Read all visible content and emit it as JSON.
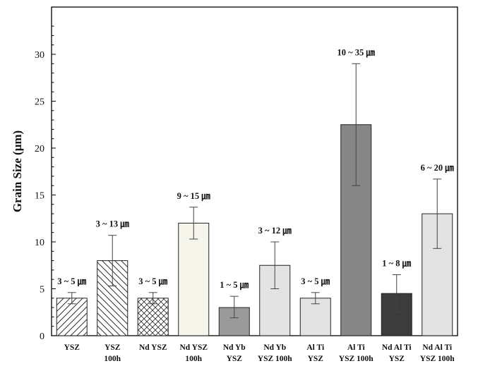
{
  "chart_data": {
    "type": "bar",
    "ylabel": "Grain Size (μm)",
    "ylim": [
      0,
      33
    ],
    "yticks": [
      0,
      5,
      10,
      15,
      20,
      25,
      30
    ],
    "grid": false,
    "categories": [
      [
        "YSZ"
      ],
      [
        "YSZ",
        "100h"
      ],
      [
        "Nd YSZ"
      ],
      [
        "Nd YSZ",
        "100h"
      ],
      [
        "Nd Yb",
        "YSZ"
      ],
      [
        "Nd Yb",
        "YSZ 100h"
      ],
      [
        "Al Ti",
        "YSZ"
      ],
      [
        "Al Ti",
        "YSZ 100h"
      ],
      [
        "Nd Al Ti",
        "YSZ"
      ],
      [
        "Nd Al Ti",
        "YSZ 100h"
      ]
    ],
    "values": [
      4,
      8,
      4,
      12,
      3,
      7.5,
      4,
      22.5,
      4.5,
      13
    ],
    "error_low": [
      3.4,
      5.3,
      3.4,
      10.3,
      1.9,
      5.0,
      3.4,
      16.0,
      2.5,
      9.3
    ],
    "error_high": [
      4.6,
      10.7,
      4.6,
      13.7,
      4.2,
      10.0,
      4.6,
      29.0,
      6.5,
      16.7
    ],
    "data_labels": [
      "3 ~ 5 ㎛",
      "3 ~ 13 ㎛",
      "3 ~ 5 ㎛",
      "9 ~ 15 ㎛",
      "1 ~ 5 ㎛",
      "3 ~ 12 ㎛",
      "3 ~ 5 ㎛",
      "10 ~ 35 ㎛",
      "1 ~ 8 ㎛",
      "6 ~ 20 ㎛"
    ],
    "bar_fills": [
      "hatch-fwd",
      "hatch-back",
      "hatch-cross",
      "#f5f5ec",
      "#9a9a9a",
      "#e3e3e3",
      "#e3e3e3",
      "#868686",
      "#3c3c3c",
      "#e3e3e3"
    ]
  }
}
